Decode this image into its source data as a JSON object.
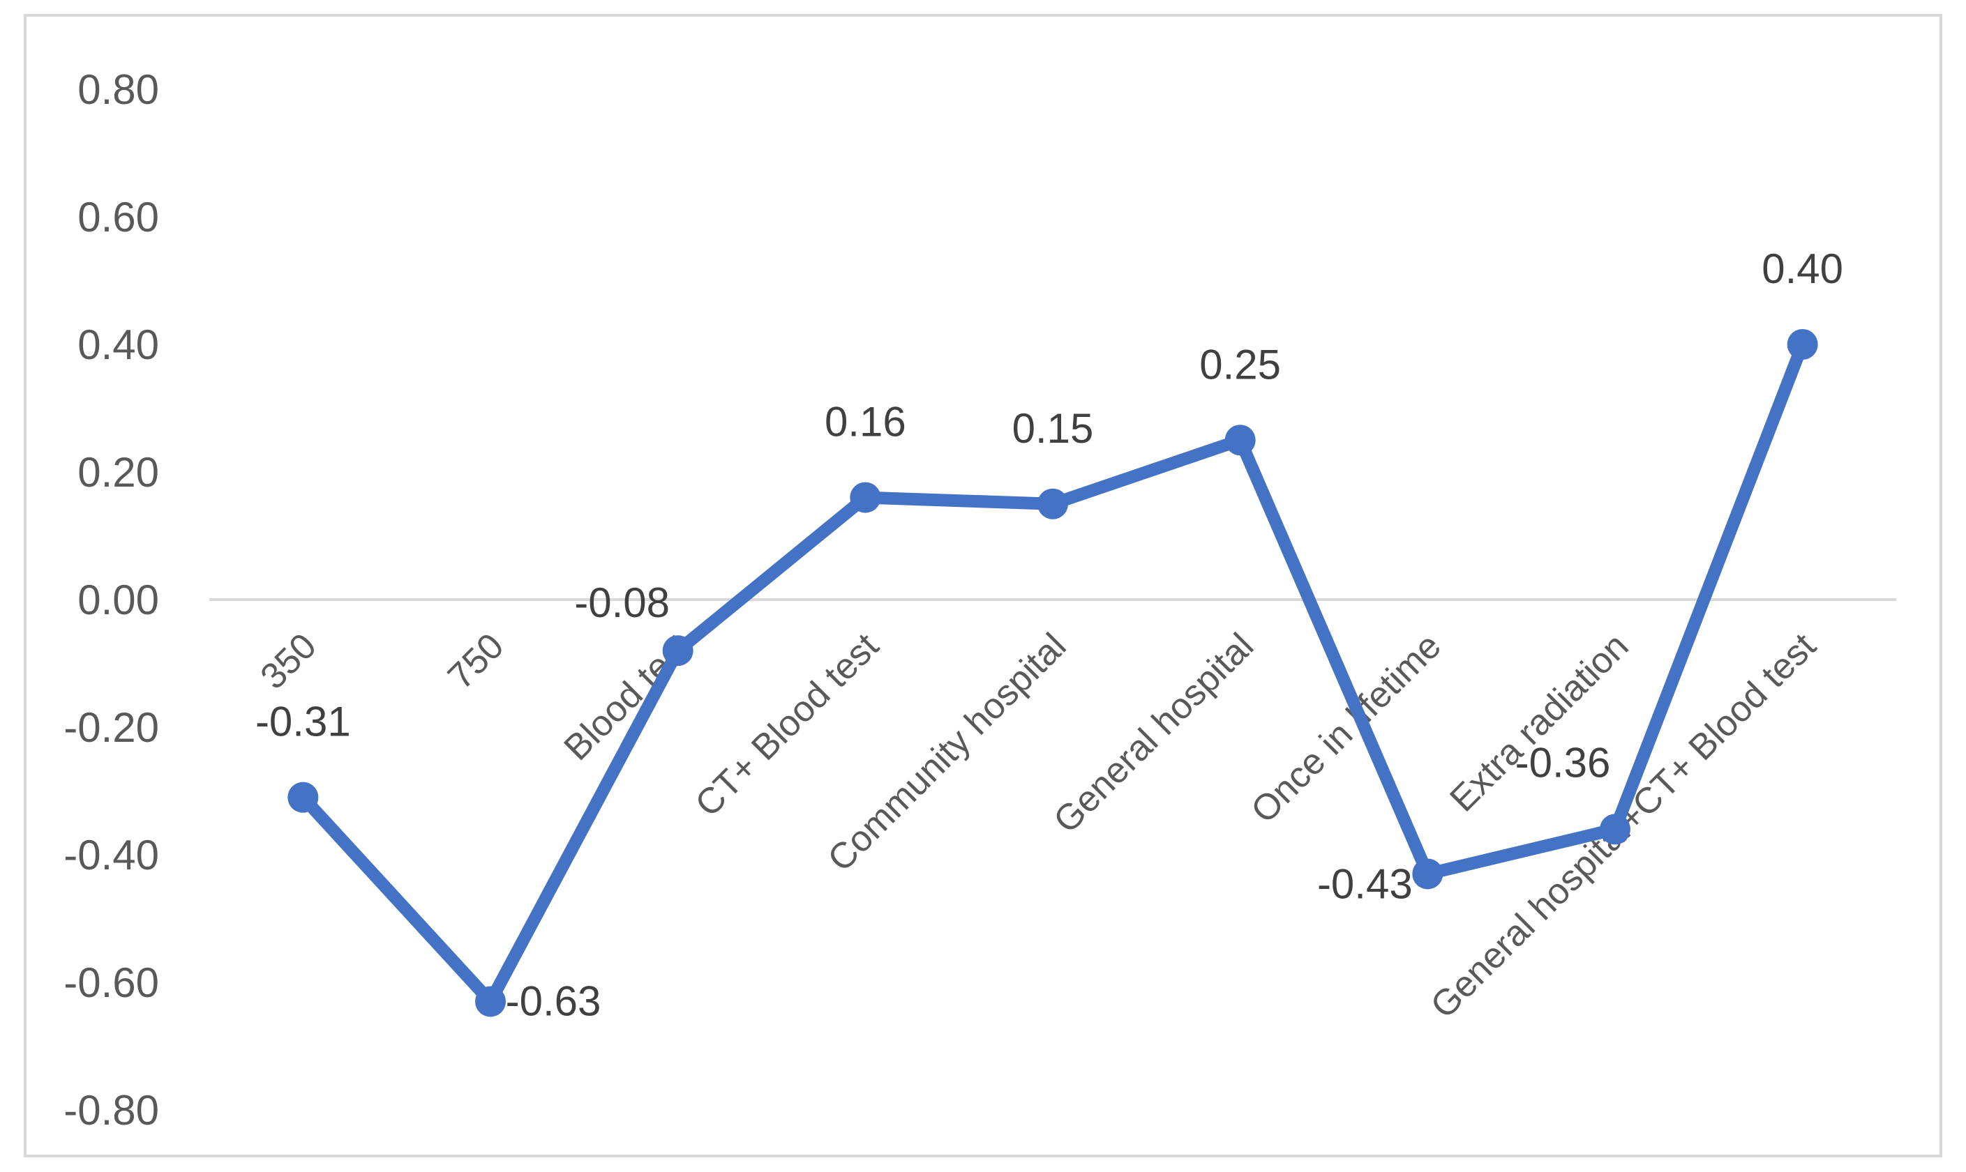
{
  "chart_data": {
    "type": "line",
    "title": "",
    "xlabel": "",
    "ylabel": "",
    "categories": [
      "350",
      "750",
      "Blood test",
      "CT+ Blood test",
      "Community hospital",
      "General hospital",
      "Once in lifetime",
      "Extra radiation",
      "General hospital+CT+ Blood test"
    ],
    "series": [
      {
        "values": [
          -0.31,
          -0.63,
          -0.08,
          0.16,
          0.15,
          0.25,
          -0.43,
          -0.36,
          0.4
        ],
        "data_labels": [
          "-0.31",
          "-0.63",
          "-0.08",
          "0.16",
          "0.15",
          "0.25",
          "-0.43",
          "-0.36",
          "0.40"
        ],
        "color": "#4472c4"
      }
    ],
    "ylim": [
      -0.8,
      0.8
    ],
    "yticks": [
      {
        "value": 0.8,
        "label": "0.80"
      },
      {
        "value": 0.6,
        "label": "0.60"
      },
      {
        "value": 0.4,
        "label": "0.40"
      },
      {
        "value": 0.2,
        "label": "0.20"
      },
      {
        "value": 0.0,
        "label": "0.00"
      },
      {
        "value": -0.2,
        "label": "-0.20"
      },
      {
        "value": -0.4,
        "label": "-0.40"
      },
      {
        "value": -0.6,
        "label": "-0.60"
      },
      {
        "value": -0.8,
        "label": "-0.80"
      }
    ],
    "grid": false,
    "legend": "none"
  }
}
